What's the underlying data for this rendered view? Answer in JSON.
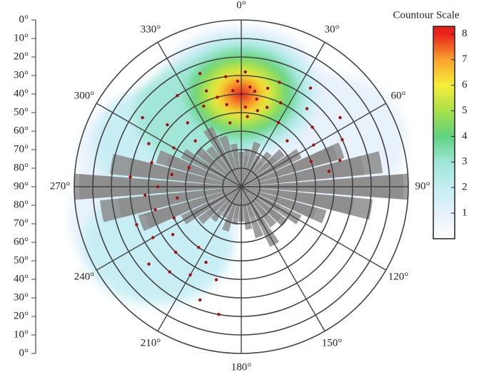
{
  "chart_data": {
    "type": "polar-scatter",
    "colorbar": {
      "title": "Countour Scale",
      "ticks": [
        1,
        2,
        3,
        4,
        5,
        6,
        7,
        8
      ],
      "lim": [
        0,
        8.3
      ],
      "colors": [
        "#ffffff",
        "#e6f1fb",
        "#c4eef4",
        "#9ee6d6",
        "#5fd27e",
        "#a8e04a",
        "#f7ee3a",
        "#f9a22c",
        "#e8211b"
      ]
    },
    "xticks": [
      {
        "value": 0,
        "label": "0°"
      },
      {
        "value": 30,
        "label": "30°"
      },
      {
        "value": 60,
        "label": "60°"
      },
      {
        "value": 90,
        "label": "90°"
      },
      {
        "value": 120,
        "label": "120°"
      },
      {
        "value": 150,
        "label": "150°"
      },
      {
        "value": 180,
        "label": "180°"
      },
      {
        "value": 210,
        "label": "210°"
      },
      {
        "value": 240,
        "label": "240°"
      },
      {
        "value": 270,
        "label": "270°"
      },
      {
        "value": 300,
        "label": "300°"
      },
      {
        "value": 330,
        "label": "330°"
      }
    ],
    "ylim": [
      0,
      90
    ],
    "yticks": [
      {
        "value": 0,
        "label": "0°"
      },
      {
        "value": 10,
        "label": "10°"
      },
      {
        "value": 20,
        "label": "20°"
      },
      {
        "value": 30,
        "label": "30°"
      },
      {
        "value": 40,
        "label": "40°"
      },
      {
        "value": 50,
        "label": "50°"
      },
      {
        "value": 60,
        "label": "60°"
      },
      {
        "value": 70,
        "label": "70°"
      },
      {
        "value": 80,
        "label": "80°"
      },
      {
        "value": 90,
        "label": "90°"
      }
    ],
    "contours": {
      "x": [
        0,
        0,
        0,
        0,
        0,
        0,
        0,
        0,
        290,
        300,
        250,
        235,
        60,
        330
      ],
      "values": [
        40,
        40,
        40,
        40,
        40,
        40,
        40,
        40,
        45,
        45,
        40,
        35,
        40,
        45
      ],
      "levels": [
        1,
        2,
        3,
        4,
        5,
        6,
        7,
        8,
        1,
        2,
        1,
        2,
        1,
        3
      ]
    },
    "rose": {
      "color": "#8c8c8c",
      "xlim": [
        0,
        100
      ],
      "directions": [
        0,
        10,
        20,
        30,
        40,
        50,
        60,
        70,
        80,
        90,
        100,
        110,
        120,
        130,
        140,
        150,
        160,
        170,
        180,
        190,
        200,
        210,
        220,
        230,
        240,
        250,
        260,
        270,
        280,
        290,
        300,
        310,
        320,
        330,
        340,
        350
      ],
      "values": [
        21,
        19,
        23,
        17,
        26,
        32,
        40,
        64,
        85,
        97,
        68,
        47,
        26,
        34,
        30,
        40,
        32,
        26,
        21,
        23,
        28,
        21,
        19,
        26,
        34,
        60,
        74,
        100,
        79,
        53,
        40,
        30,
        23,
        26,
        19,
        23
      ]
    },
    "points": {
      "color": "#a50f0f",
      "x": [
        355,
        0,
        5,
        10,
        350,
        358,
        3,
        8,
        15,
        345,
        352,
        12,
        20,
        340,
        2,
        25,
        335,
        30,
        325,
        320,
        310,
        315,
        305,
        300,
        295,
        290,
        285,
        280,
        275,
        270,
        265,
        260,
        255,
        250,
        245,
        240,
        235,
        230,
        225,
        220,
        215,
        210,
        205,
        200,
        195,
        190,
        40,
        45,
        50,
        55,
        60,
        65,
        70,
        75,
        80,
        35,
        350,
        5,
        18,
        340
      ],
      "values": [
        38,
        40,
        36,
        42,
        45,
        33,
        47,
        38,
        35,
        40,
        30,
        48,
        30,
        35,
        28,
        40,
        42,
        50,
        30,
        45,
        38,
        55,
        25,
        48,
        35,
        60,
        40,
        52,
        30,
        45,
        38,
        55,
        42,
        30,
        50,
        35,
        45,
        25,
        40,
        30,
        50,
        35,
        45,
        25,
        38,
        20,
        35,
        55,
        40,
        25,
        45,
        30,
        50,
        35,
        42,
        25,
        55,
        52,
        45,
        25
      ]
    }
  }
}
